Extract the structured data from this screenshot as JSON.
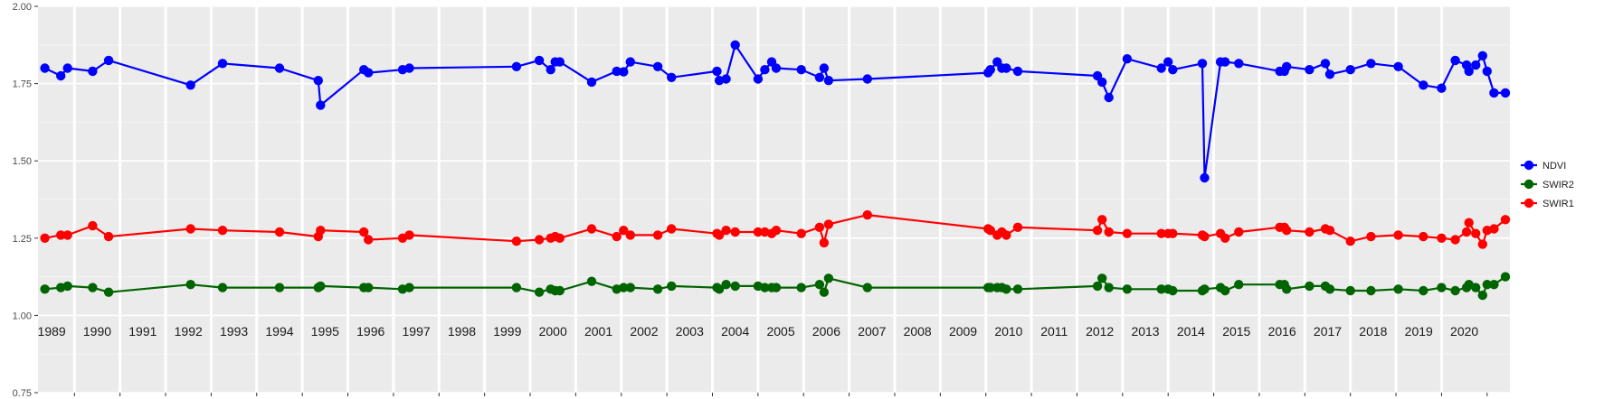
{
  "chart_data": {
    "type": "line",
    "ylim": [
      0.75,
      2.0
    ],
    "y_ticks": [
      "0.75",
      "1.00",
      "1.25",
      "1.50",
      "1.75",
      "2.00"
    ],
    "x_range": [
      1988.7,
      2021.0
    ],
    "years": [
      "1989",
      "1990",
      "1991",
      "1992",
      "1993",
      "1994",
      "1995",
      "1996",
      "1997",
      "1998",
      "1999",
      "2000",
      "2001",
      "2002",
      "2003",
      "2004",
      "2005",
      "2006",
      "2007",
      "2008",
      "2009",
      "2010",
      "2011",
      "2012",
      "2013",
      "2014",
      "2015",
      "2016",
      "2017",
      "2018",
      "2019",
      "2020"
    ],
    "grid": true,
    "legend_position": "right",
    "series": [
      {
        "name": "NDVI",
        "color": "#0000ff",
        "x": [
          1988.85,
          1989.2,
          1989.35,
          1989.9,
          1990.25,
          1992.05,
          1992.75,
          1994.0,
          1994.85,
          1994.9,
          1995.85,
          1995.95,
          1996.7,
          1996.85,
          1999.2,
          1999.7,
          1999.95,
          2000.05,
          2000.15,
          2000.85,
          2001.4,
          2001.55,
          2001.7,
          2002.3,
          2002.6,
          2003.6,
          2003.65,
          2003.8,
          2004.0,
          2004.5,
          2004.65,
          2004.8,
          2004.9,
          2005.45,
          2005.85,
          2005.95,
          2006.05,
          2006.9,
          2009.55,
          2009.6,
          2009.75,
          2009.85,
          2009.95,
          2010.2,
          2011.95,
          2012.05,
          2012.2,
          2012.6,
          2013.35,
          2013.5,
          2013.6,
          2014.25,
          2014.3,
          2014.65,
          2014.75,
          2015.05,
          2015.95,
          2016.05,
          2016.1,
          2016.6,
          2016.95,
          2017.05,
          2017.5,
          2017.95,
          2018.55,
          2019.1,
          2019.5,
          2019.8,
          2020.05,
          2020.1,
          2020.25,
          2020.4,
          2020.5,
          2020.65,
          2020.9
        ],
        "y": [
          1.8,
          1.775,
          1.8,
          1.79,
          1.825,
          1.745,
          1.815,
          1.8,
          1.76,
          1.68,
          1.795,
          1.785,
          1.795,
          1.8,
          1.805,
          1.825,
          1.795,
          1.82,
          1.82,
          1.755,
          1.79,
          1.788,
          1.82,
          1.805,
          1.77,
          1.79,
          1.76,
          1.765,
          1.875,
          1.765,
          1.795,
          1.82,
          1.8,
          1.795,
          1.77,
          1.8,
          1.76,
          1.765,
          1.785,
          1.795,
          1.82,
          1.8,
          1.8,
          1.79,
          1.775,
          1.755,
          1.705,
          1.83,
          1.8,
          1.82,
          1.795,
          1.815,
          1.445,
          1.82,
          1.82,
          1.815,
          1.79,
          1.79,
          1.805,
          1.795,
          1.815,
          1.78,
          1.795,
          1.815,
          1.805,
          1.745,
          1.735,
          1.825,
          1.81,
          1.79,
          1.81,
          1.84,
          1.79,
          1.72,
          1.72
        ]
      },
      {
        "name": "SWIR2",
        "color": "#006400",
        "x": [
          1988.85,
          1989.2,
          1989.35,
          1989.9,
          1990.25,
          1992.05,
          1992.75,
          1994.0,
          1994.85,
          1994.9,
          1995.85,
          1995.95,
          1996.7,
          1996.85,
          1999.2,
          1999.7,
          1999.95,
          2000.05,
          2000.15,
          2000.85,
          2001.4,
          2001.55,
          2001.7,
          2002.3,
          2002.6,
          2003.6,
          2003.65,
          2003.8,
          2004.0,
          2004.5,
          2004.65,
          2004.8,
          2004.9,
          2005.45,
          2005.85,
          2005.95,
          2006.05,
          2006.9,
          2009.55,
          2009.6,
          2009.75,
          2009.85,
          2009.95,
          2010.2,
          2011.95,
          2012.05,
          2012.2,
          2012.6,
          2013.35,
          2013.5,
          2013.6,
          2014.25,
          2014.3,
          2014.65,
          2014.75,
          2015.05,
          2015.95,
          2016.05,
          2016.1,
          2016.6,
          2016.95,
          2017.05,
          2017.5,
          2017.95,
          2018.55,
          2019.1,
          2019.5,
          2019.8,
          2020.05,
          2020.1,
          2020.25,
          2020.4,
          2020.5,
          2020.65,
          2020.9
        ],
        "y": [
          1.085,
          1.09,
          1.095,
          1.09,
          1.075,
          1.1,
          1.09,
          1.09,
          1.09,
          1.095,
          1.09,
          1.09,
          1.085,
          1.09,
          1.09,
          1.075,
          1.085,
          1.08,
          1.08,
          1.11,
          1.085,
          1.09,
          1.09,
          1.085,
          1.095,
          1.09,
          1.085,
          1.1,
          1.095,
          1.095,
          1.09,
          1.09,
          1.09,
          1.09,
          1.1,
          1.075,
          1.12,
          1.09,
          1.09,
          1.09,
          1.09,
          1.09,
          1.085,
          1.085,
          1.095,
          1.12,
          1.09,
          1.085,
          1.085,
          1.085,
          1.08,
          1.08,
          1.085,
          1.09,
          1.08,
          1.1,
          1.1,
          1.1,
          1.085,
          1.095,
          1.095,
          1.085,
          1.08,
          1.08,
          1.085,
          1.08,
          1.09,
          1.08,
          1.09,
          1.1,
          1.09,
          1.065,
          1.1,
          1.1,
          1.125
        ]
      },
      {
        "name": "SWIR1",
        "color": "#ff0000",
        "x": [
          1988.85,
          1989.2,
          1989.35,
          1989.9,
          1990.25,
          1992.05,
          1992.75,
          1994.0,
          1994.85,
          1994.9,
          1995.85,
          1995.95,
          1996.7,
          1996.85,
          1999.2,
          1999.7,
          1999.95,
          2000.05,
          2000.15,
          2000.85,
          2001.4,
          2001.55,
          2001.7,
          2002.3,
          2002.6,
          2003.6,
          2003.65,
          2003.8,
          2004.0,
          2004.5,
          2004.65,
          2004.8,
          2004.9,
          2005.45,
          2005.85,
          2005.95,
          2006.05,
          2006.9,
          2009.55,
          2009.6,
          2009.75,
          2009.85,
          2009.95,
          2010.2,
          2011.95,
          2012.05,
          2012.2,
          2012.6,
          2013.35,
          2013.5,
          2013.6,
          2014.25,
          2014.3,
          2014.65,
          2014.75,
          2015.05,
          2015.95,
          2016.05,
          2016.1,
          2016.6,
          2016.95,
          2017.05,
          2017.5,
          2017.95,
          2018.55,
          2019.1,
          2019.5,
          2019.8,
          2020.05,
          2020.1,
          2020.25,
          2020.4,
          2020.5,
          2020.65,
          2020.9
        ],
        "y": [
          1.25,
          1.26,
          1.26,
          1.29,
          1.255,
          1.28,
          1.275,
          1.27,
          1.255,
          1.275,
          1.27,
          1.245,
          1.25,
          1.26,
          1.24,
          1.245,
          1.25,
          1.255,
          1.25,
          1.28,
          1.255,
          1.275,
          1.26,
          1.26,
          1.28,
          1.265,
          1.26,
          1.275,
          1.27,
          1.27,
          1.27,
          1.265,
          1.275,
          1.265,
          1.285,
          1.235,
          1.295,
          1.325,
          1.28,
          1.275,
          1.26,
          1.27,
          1.26,
          1.285,
          1.275,
          1.31,
          1.27,
          1.265,
          1.265,
          1.265,
          1.265,
          1.26,
          1.255,
          1.265,
          1.25,
          1.27,
          1.285,
          1.285,
          1.275,
          1.27,
          1.28,
          1.275,
          1.24,
          1.255,
          1.26,
          1.255,
          1.25,
          1.245,
          1.27,
          1.3,
          1.265,
          1.23,
          1.275,
          1.28,
          1.31
        ]
      }
    ]
  }
}
